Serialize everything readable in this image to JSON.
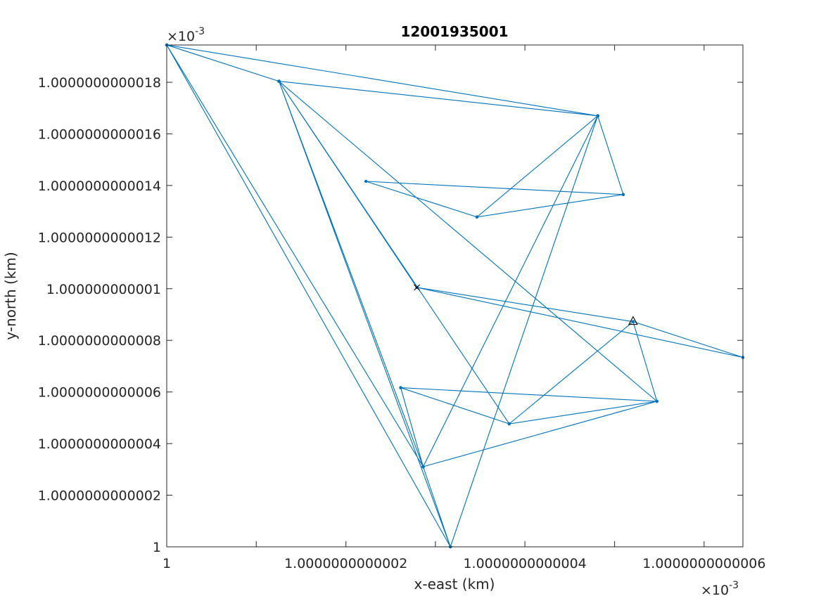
{
  "chart_data": {
    "type": "line",
    "title": "12001935001",
    "xlabel": "x-east (km)",
    "ylabel": "y-north (km)",
    "x_multiplier": "×10",
    "x_exponent": "-3",
    "y_multiplier": "×10",
    "y_exponent": "-3",
    "xlim": [
      1.0,
      1.0000000000006433
    ],
    "ylim": [
      1.0,
      1.0000000000019444
    ],
    "x_ticks": [
      {
        "value": 1.0,
        "label": "1"
      },
      {
        "value": 1.0000000000001,
        "label": ""
      },
      {
        "value": 1.0000000000002,
        "label": "1.0000000000002"
      },
      {
        "value": 1.0000000000003,
        "label": ""
      },
      {
        "value": 1.0000000000004,
        "label": "1.0000000000004"
      },
      {
        "value": 1.0000000000005,
        "label": ""
      },
      {
        "value": 1.0000000000006,
        "label": "1.0000000000006"
      }
    ],
    "y_ticks": [
      {
        "value": 1.0,
        "label": "1"
      },
      {
        "value": 1.0000000000002,
        "label": "1.0000000000002"
      },
      {
        "value": 1.0000000000004,
        "label": "1.0000000000004"
      },
      {
        "value": 1.0000000000006,
        "label": "1.0000000000006"
      },
      {
        "value": 1.0000000000008,
        "label": "1.0000000000008"
      },
      {
        "value": 1.000000000001,
        "label": "1.000000000001"
      },
      {
        "value": 1.0000000000012,
        "label": "1.0000000000012"
      },
      {
        "value": 1.0000000000014,
        "label": "1.0000000000014"
      },
      {
        "value": 1.0000000000016,
        "label": "1.0000000000016"
      },
      {
        "value": 1.0000000000018,
        "label": "1.0000000000018"
      }
    ],
    "series": [
      {
        "color": "#0072BD",
        "marker": "dot",
        "points": [
          {
            "x": 0.0,
            "y": 19.444
          },
          {
            "x": 1.253,
            "y": 18.039
          },
          {
            "x": 4.812,
            "y": 16.699
          },
          {
            "x": 5.097,
            "y": 13.65
          },
          {
            "x": 3.464,
            "y": 12.779
          },
          {
            "x": 4.812,
            "y": 16.699
          },
          {
            "x": 3.167,
            "y": 0.0
          },
          {
            "x": 1.253,
            "y": 18.039
          },
          {
            "x": 2.863,
            "y": 3.104
          },
          {
            "x": 0.0,
            "y": 19.444
          },
          {
            "x": 2.863,
            "y": 3.104
          },
          {
            "x": 2.612,
            "y": 6.166
          },
          {
            "x": 5.473,
            "y": 5.637
          },
          {
            "x": 3.824,
            "y": 4.766
          },
          {
            "x": 5.207,
            "y": 8.725
          },
          {
            "x": 2.793,
            "y": 10.049
          },
          {
            "x": 6.433,
            "y": 7.339
          },
          {
            "x": 5.207,
            "y": 8.725
          },
          {
            "x": 5.473,
            "y": 5.637
          },
          {
            "x": 1.253,
            "y": 18.039
          },
          {
            "x": 2.863,
            "y": 3.104
          },
          {
            "x": 4.812,
            "y": 16.699
          },
          {
            "x": 0.0,
            "y": 19.444
          },
          {
            "x": 3.167,
            "y": 0.0
          },
          {
            "x": 0.0,
            "y": 19.444
          },
          {
            "x": 2.863,
            "y": 3.104
          },
          {
            "x": 1.253,
            "y": 18.039
          },
          {
            "x": 3.824,
            "y": 4.766
          },
          {
            "x": 2.612,
            "y": 6.166
          },
          {
            "x": 5.473,
            "y": 5.637
          },
          {
            "x": 2.863,
            "y": 3.104
          },
          {
            "x": 3.167,
            "y": 0.0
          },
          {
            "x": 4.812,
            "y": 16.699
          },
          {
            "x": 3.464,
            "y": 12.779
          },
          {
            "x": 2.224,
            "y": 14.161
          },
          {
            "x": 5.097,
            "y": 13.65
          },
          {
            "x": 4.812,
            "y": 16.699
          },
          {
            "x": 1.253,
            "y": 18.039
          },
          {
            "x": 2.793,
            "y": 10.049
          },
          {
            "x": 5.207,
            "y": 8.725
          }
        ]
      }
    ],
    "start_marker": {
      "x": 2.793,
      "y": 10.049,
      "symbol": "x"
    },
    "end_marker": {
      "x": 5.207,
      "y": 8.725,
      "symbol": "triangle"
    },
    "grid": false,
    "legend": "none"
  }
}
